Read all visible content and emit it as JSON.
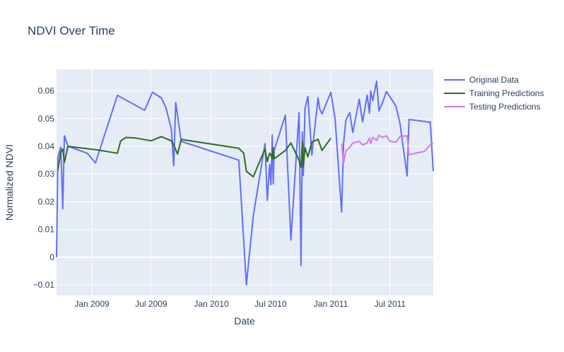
{
  "chart_data": {
    "type": "line",
    "title": "NDVI Over Time",
    "xlabel": "Date",
    "ylabel": "Normalized NDVI",
    "x_range": [
      "2008-09-15",
      "2011-11-10"
    ],
    "ylim": [
      -0.0138,
      0.0678
    ],
    "x_ticks": [
      {
        "date": "2009-01-01",
        "label": "Jan 2009"
      },
      {
        "date": "2009-07-01",
        "label": "Jul 2009"
      },
      {
        "date": "2010-01-01",
        "label": "Jan 2010"
      },
      {
        "date": "2010-07-01",
        "label": "Jul 2010"
      },
      {
        "date": "2011-01-01",
        "label": "Jan 2011"
      },
      {
        "date": "2011-07-01",
        "label": "Jul 2011"
      }
    ],
    "y_ticks": [
      {
        "value": -0.01,
        "label": "−0.01"
      },
      {
        "value": 0,
        "label": "0"
      },
      {
        "value": 0.01,
        "label": "0.01"
      },
      {
        "value": 0.02,
        "label": "0.02"
      },
      {
        "value": 0.03,
        "label": "0.03"
      },
      {
        "value": 0.04,
        "label": "0.04"
      },
      {
        "value": 0.05,
        "label": "0.05"
      },
      {
        "value": 0.06,
        "label": "0.06"
      }
    ],
    "grid": true,
    "legend_position": "top-right",
    "series": [
      {
        "name": "Original Data",
        "color": "#636efa",
        "x": [
          "2008-09-15",
          "2008-09-19",
          "2008-09-28",
          "2008-10-04",
          "2008-10-09",
          "2008-10-20",
          "2008-12-18",
          "2009-01-12",
          "2009-03-20",
          "2009-06-11",
          "2009-07-05",
          "2009-08-01",
          "2009-08-15",
          "2009-09-01",
          "2009-09-08",
          "2009-09-14",
          "2009-10-01",
          "2010-03-26",
          "2010-04-18",
          "2010-05-09",
          "2010-06-14",
          "2010-06-21",
          "2010-06-28",
          "2010-07-02",
          "2010-07-06",
          "2010-07-09",
          "2010-07-12",
          "2010-08-15",
          "2010-09-01",
          "2010-09-26",
          "2010-10-02",
          "2010-10-06",
          "2010-10-09",
          "2010-10-14",
          "2010-10-23",
          "2010-11-04",
          "2010-11-23",
          "2010-11-28",
          "2010-12-05",
          "2011-01-01",
          "2011-01-14",
          "2011-02-03",
          "2011-02-09",
          "2011-02-16",
          "2011-02-28",
          "2011-03-09",
          "2011-03-29",
          "2011-04-08",
          "2011-04-22",
          "2011-04-29",
          "2011-05-03",
          "2011-05-09",
          "2011-05-21",
          "2011-05-28",
          "2011-06-07",
          "2011-06-20",
          "2011-07-01",
          "2011-07-19",
          "2011-07-31",
          "2011-08-22",
          "2011-08-28",
          "2011-10-14",
          "2011-10-22",
          "2011-10-28",
          "2011-11-01",
          "2011-11-10"
        ],
        "values": [
          0.0,
          0.036,
          0.0398,
          0.0175,
          0.0438,
          0.04,
          0.0375,
          0.034,
          0.0584,
          0.053,
          0.0595,
          0.0575,
          0.054,
          0.0462,
          0.033,
          0.0558,
          0.0418,
          0.035,
          -0.01,
          0.0148,
          0.041,
          0.0205,
          0.0335,
          0.0262,
          0.044,
          0.0265,
          0.0385,
          0.0512,
          0.0062,
          0.0522,
          -0.003,
          0.0452,
          0.0295,
          0.0535,
          0.058,
          0.0368,
          0.0575,
          0.0535,
          0.0517,
          0.0595,
          0.05,
          0.0163,
          0.041,
          0.0495,
          0.0522,
          0.045,
          0.057,
          0.0488,
          0.0585,
          0.052,
          0.06,
          0.0565,
          0.0635,
          0.0528,
          0.0555,
          0.0598,
          0.0578,
          0.0545,
          0.0485,
          0.0293,
          0.0497,
          0.049,
          0.0488,
          0.0487,
          0.0488,
          0.031
        ]
      },
      {
        "name": "Training Predictions",
        "color": "#2e6b1f",
        "x": [
          "2008-09-19",
          "2008-09-28",
          "2008-10-04",
          "2008-10-09",
          "2008-10-20",
          "2009-01-12",
          "2009-03-20",
          "2009-03-30",
          "2009-04-15",
          "2009-05-15",
          "2009-07-01",
          "2009-08-01",
          "2009-09-01",
          "2009-09-08",
          "2009-09-20",
          "2009-10-01",
          "2010-03-26",
          "2010-04-10",
          "2010-04-18",
          "2010-05-09",
          "2010-06-01",
          "2010-06-14",
          "2010-06-21",
          "2010-06-28",
          "2010-07-02",
          "2010-07-06",
          "2010-07-09",
          "2010-07-12",
          "2010-08-15",
          "2010-09-01",
          "2010-09-26",
          "2010-10-02",
          "2010-10-06",
          "2010-10-09",
          "2010-10-14",
          "2010-10-23",
          "2010-11-04",
          "2010-11-23",
          "2010-12-05",
          "2011-01-01"
        ],
        "values": [
          0.0315,
          0.038,
          0.039,
          0.0342,
          0.04,
          0.0388,
          0.0375,
          0.042,
          0.0432,
          0.043,
          0.042,
          0.0435,
          0.042,
          0.0405,
          0.0372,
          0.0425,
          0.0393,
          0.0375,
          0.031,
          0.029,
          0.0355,
          0.039,
          0.0345,
          0.0375,
          0.037,
          0.0355,
          0.0395,
          0.0355,
          0.0385,
          0.0412,
          0.035,
          0.0325,
          0.0415,
          0.0325,
          0.0395,
          0.0362,
          0.0415,
          0.0425,
          0.0385,
          0.043
        ]
      },
      {
        "name": "Testing Predictions",
        "color": "#ce7ee7",
        "x": [
          "2011-02-03",
          "2011-02-09",
          "2011-02-16",
          "2011-02-28",
          "2011-03-09",
          "2011-03-29",
          "2011-04-08",
          "2011-04-22",
          "2011-04-29",
          "2011-05-03",
          "2011-05-09",
          "2011-05-21",
          "2011-05-28",
          "2011-06-07",
          "2011-06-20",
          "2011-07-01",
          "2011-07-19",
          "2011-07-31",
          "2011-08-22",
          "2011-08-28",
          "2011-10-14",
          "2011-10-22",
          "2011-10-28",
          "2011-11-01",
          "2011-11-10"
        ],
        "values": [
          0.041,
          0.034,
          0.0383,
          0.0397,
          0.0412,
          0.0418,
          0.0405,
          0.0412,
          0.043,
          0.041,
          0.0432,
          0.0422,
          0.044,
          0.0432,
          0.0438,
          0.0418,
          0.0415,
          0.0435,
          0.0438,
          0.037,
          0.0382,
          0.0392,
          0.04,
          0.0405,
          0.041
        ]
      }
    ]
  }
}
